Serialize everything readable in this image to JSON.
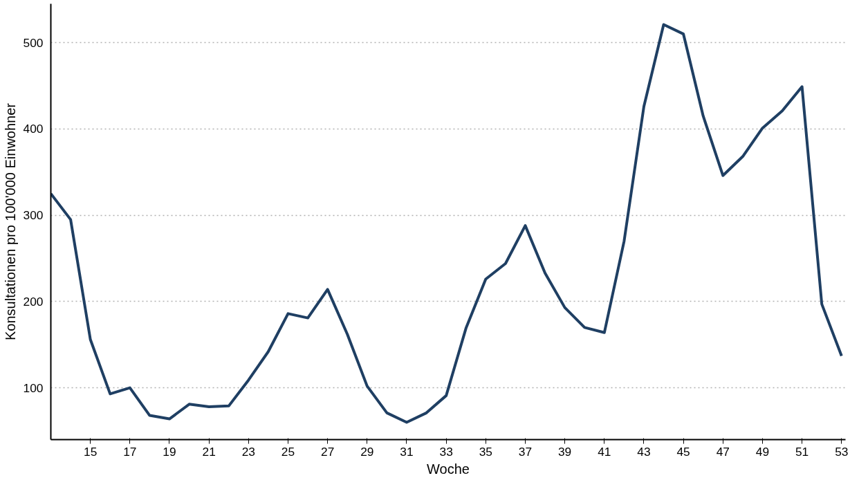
{
  "chart_data": {
    "type": "line",
    "xlabel": "Woche",
    "ylabel": "Konsultationen pro 100'000 Einwohner",
    "x": [
      13,
      14,
      15,
      16,
      17,
      18,
      19,
      20,
      21,
      22,
      23,
      24,
      25,
      26,
      27,
      28,
      29,
      30,
      31,
      32,
      33,
      34,
      35,
      36,
      37,
      38,
      39,
      40,
      41,
      42,
      43,
      44,
      45,
      46,
      47,
      48,
      49,
      50,
      51,
      52,
      53
    ],
    "series": [
      {
        "color": "#1f3f63",
        "values": [
          325,
          295,
          156,
          93,
          100,
          68,
          64,
          81,
          78,
          79,
          109,
          142,
          186,
          181,
          214,
          162,
          102,
          71,
          60,
          71,
          91,
          169,
          226,
          244,
          288,
          233,
          193,
          170,
          164,
          270,
          426,
          521,
          510,
          415,
          346,
          368,
          401,
          421,
          449,
          197,
          137
        ]
      }
    ],
    "xlim": [
      13,
      53.2
    ],
    "ylim": [
      40,
      545
    ],
    "xticks": [
      15,
      17,
      19,
      21,
      23,
      25,
      27,
      29,
      31,
      33,
      35,
      37,
      39,
      41,
      43,
      45,
      47,
      49,
      51,
      53
    ],
    "yticks": [
      100,
      200,
      300,
      400,
      500
    ],
    "grid": "y",
    "marker": "none",
    "line_style": "solid"
  }
}
